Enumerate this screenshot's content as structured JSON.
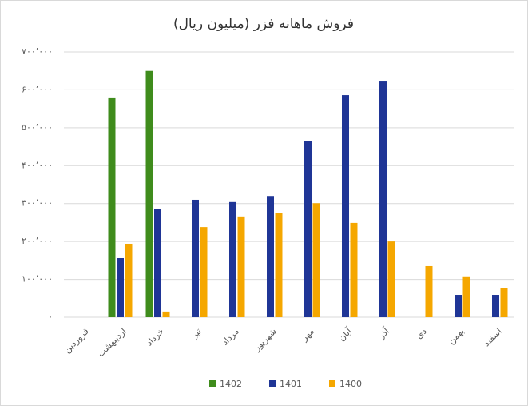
{
  "chart_data": {
    "type": "bar",
    "title": "فروش ماهانه فزر (میلیون ریال)",
    "categories": [
      "فروردین",
      "اردیبهشت",
      "خرداد",
      "تیر",
      "مرداد",
      "شهریور",
      "مهر",
      "آبان",
      "آذر",
      "دی",
      "بهمن",
      "اسفند"
    ],
    "series": [
      {
        "name": "1402",
        "color": "#3f8c1c",
        "values": [
          null,
          580000,
          650000,
          null,
          null,
          null,
          null,
          null,
          null,
          null,
          null,
          null
        ]
      },
      {
        "name": "1401",
        "color": "#1f3596",
        "values": [
          null,
          156000,
          285000,
          310000,
          304000,
          320000,
          464000,
          586000,
          624000,
          null,
          59000,
          59000
        ]
      },
      {
        "name": "1400",
        "color": "#f5a700",
        "values": [
          null,
          194000,
          15000,
          238000,
          266000,
          276000,
          301000,
          249000,
          200000,
          135000,
          108000,
          78000
        ]
      }
    ],
    "ylim": [
      0,
      700000
    ],
    "yticks": [
      {
        "value": 0,
        "label": "٠"
      },
      {
        "value": 100000,
        "label": "۱۰۰٬۰۰۰"
      },
      {
        "value": 200000,
        "label": "۲۰۰٬۰۰۰"
      },
      {
        "value": 300000,
        "label": "۳۰۰٬۰۰۰"
      },
      {
        "value": 400000,
        "label": "۴۰۰٬۰۰۰"
      },
      {
        "value": 500000,
        "label": "۵۰۰٬۰۰۰"
      },
      {
        "value": 600000,
        "label": "۶۰۰٬۰۰۰"
      },
      {
        "value": 700000,
        "label": "۷۰۰٬۰۰۰"
      }
    ],
    "grid": true
  }
}
